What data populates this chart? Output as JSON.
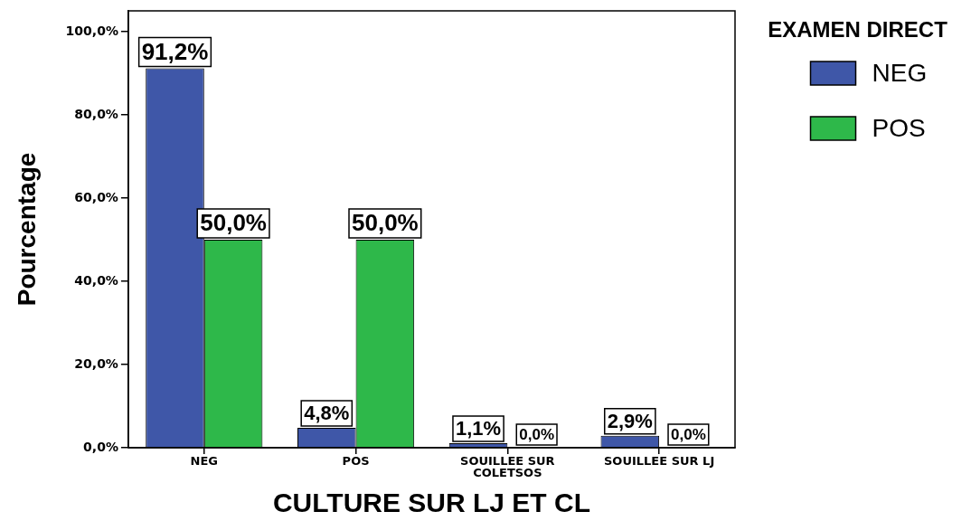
{
  "chart_data": {
    "type": "bar",
    "xlabel": "CULTURE SUR LJ ET CL",
    "ylabel": "Pourcentage",
    "legend_title": "EXAMEN DIRECT",
    "categories": [
      "NEG",
      "POS",
      "SOUILLEE SUR COLETSOS",
      "SOUILLEE SUR LJ"
    ],
    "series": [
      {
        "name": "NEG",
        "color": "#3f57a8",
        "values": [
          91.2,
          4.8,
          1.1,
          2.9
        ],
        "value_labels": [
          "91,2%",
          "4,8%",
          "1,1%",
          "2,9%"
        ]
      },
      {
        "name": "POS",
        "color": "#2eb84a",
        "values": [
          50.0,
          50.0,
          0.0,
          0.0
        ],
        "value_labels": [
          "50,0%",
          "50,0%",
          "0,0%",
          "0,0%"
        ]
      }
    ],
    "ylim": [
      0,
      105
    ],
    "yticks": [
      {
        "value": 0,
        "label": "0,0%"
      },
      {
        "value": 20,
        "label": "20,0%"
      },
      {
        "value": 40,
        "label": "40,0%"
      },
      {
        "value": 60,
        "label": "60,0%"
      },
      {
        "value": 80,
        "label": "80,0%"
      },
      {
        "value": 100,
        "label": "100,0%"
      }
    ],
    "grid": false,
    "legend": "top right"
  }
}
